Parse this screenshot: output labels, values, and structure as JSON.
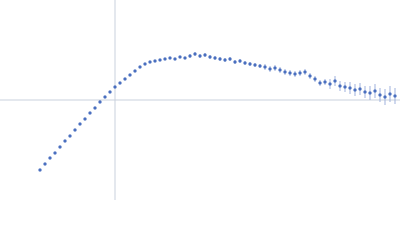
{
  "chart_data": {
    "type": "scatter",
    "x": [
      -75,
      -70,
      -65,
      -60,
      -55,
      -50,
      -45,
      -40,
      -35,
      -30,
      -25,
      -20,
      -15,
      -10,
      -5,
      0,
      5,
      10,
      15,
      20,
      25,
      30,
      35,
      40,
      45,
      50,
      55,
      60,
      65,
      70,
      75,
      80,
      85,
      90,
      95,
      100,
      105,
      110,
      115,
      120,
      125,
      130,
      135,
      140,
      145,
      150,
      155,
      160,
      165,
      170,
      175,
      180,
      185,
      190,
      195,
      200,
      205,
      210,
      215,
      220,
      225,
      230,
      235,
      240,
      245,
      250,
      255,
      260,
      265,
      270,
      275,
      280
    ],
    "values": [
      -70,
      -64,
      -58,
      -53,
      -47,
      -41,
      -36,
      -30,
      -24,
      -19,
      -13,
      -8,
      -2,
      3,
      8,
      13,
      17,
      21,
      25,
      29,
      33,
      36,
      38,
      39,
      40,
      41,
      42,
      41,
      43,
      42,
      44,
      46,
      44,
      45,
      43,
      42,
      41,
      40,
      41,
      38,
      39,
      37,
      36,
      35,
      34,
      33,
      31,
      32,
      30,
      28,
      27,
      26,
      27,
      28,
      24,
      21,
      17,
      18,
      16,
      19,
      14,
      13,
      12,
      10,
      11,
      8,
      7,
      9,
      5,
      3,
      6,
      4
    ],
    "errors": [
      1,
      1,
      1,
      1,
      1,
      1,
      1,
      1,
      1,
      1,
      1,
      1,
      1,
      1,
      1,
      1,
      1,
      1,
      1,
      1,
      1,
      1,
      1,
      1,
      1,
      1,
      1,
      1,
      1,
      1,
      2,
      2,
      2,
      2,
      2,
      2,
      2,
      2,
      2,
      2,
      2,
      2,
      2,
      2,
      2,
      3,
      3,
      3,
      3,
      3,
      3,
      3,
      3,
      3,
      3,
      3,
      3,
      3,
      5,
      5,
      5,
      5,
      6,
      6,
      6,
      6,
      7,
      7,
      7,
      8,
      8,
      8
    ],
    "color": "#4a6fbf",
    "xlim": [
      -115,
      285
    ],
    "ylim": [
      -100,
      100
    ],
    "zero_lines": true
  }
}
